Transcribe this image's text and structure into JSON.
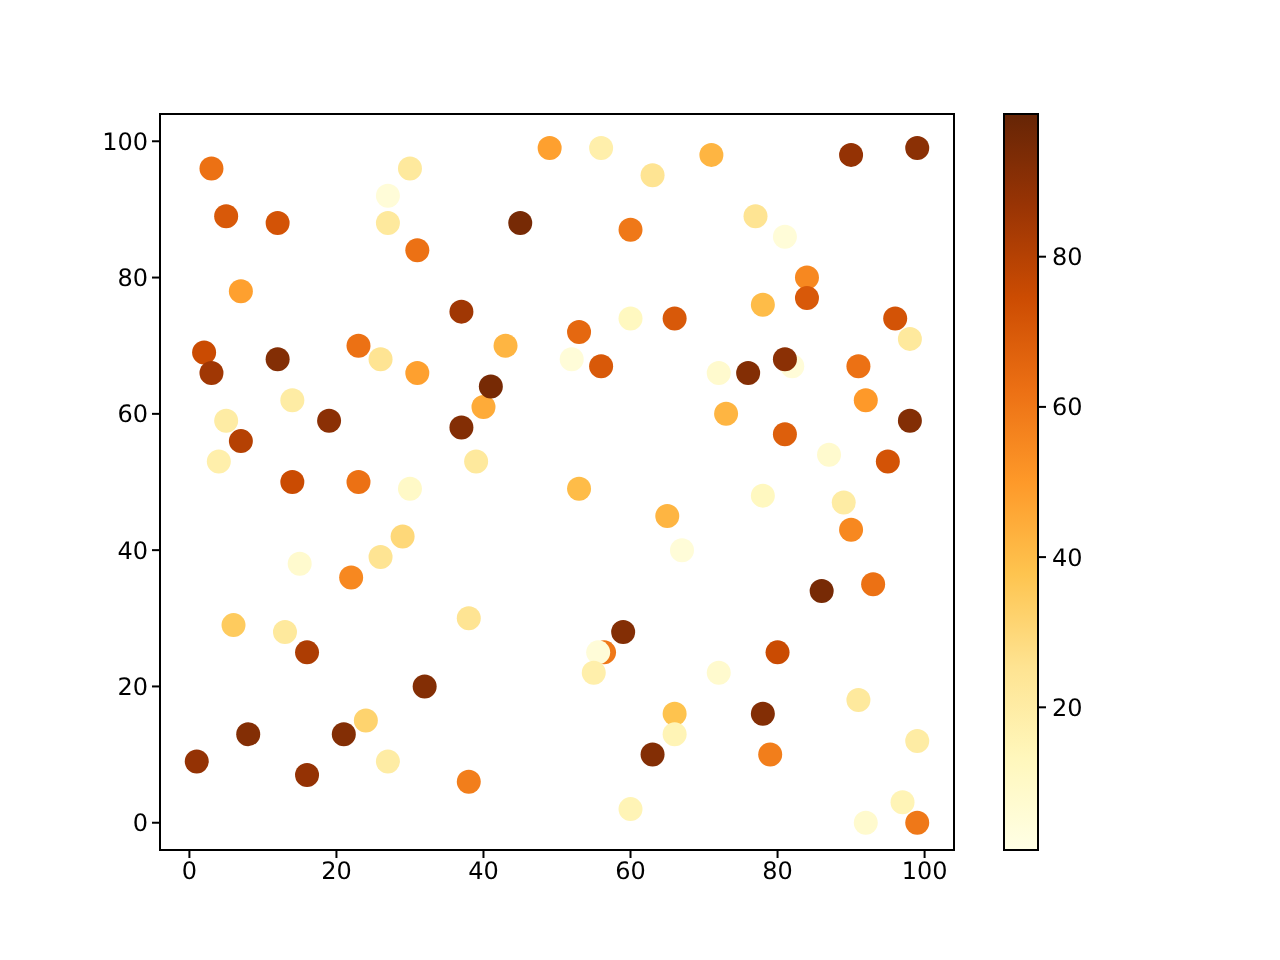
{
  "chart_data": {
    "type": "scatter",
    "marker": "circle",
    "xlim": [
      -4,
      104
    ],
    "ylim": [
      -4,
      104
    ],
    "xticks": [
      0,
      20,
      40,
      60,
      80,
      100
    ],
    "yticks": [
      0,
      20,
      40,
      60,
      80,
      100
    ],
    "clim": [
      1,
      99
    ],
    "cticks": [
      20,
      40,
      60,
      80
    ],
    "x": [
      3,
      5,
      12,
      27,
      27,
      30,
      31,
      7,
      37,
      2,
      3,
      12,
      23,
      26,
      31,
      43,
      14,
      5,
      7,
      19,
      37,
      40,
      41,
      4,
      39,
      14,
      23,
      30,
      45,
      49,
      29,
      26,
      15,
      22,
      6,
      13,
      38,
      16,
      32,
      8,
      21,
      24,
      1,
      16,
      27,
      38,
      56,
      63,
      71,
      90,
      99,
      60,
      77,
      81,
      84,
      84,
      78,
      96,
      98,
      53,
      60,
      66,
      52,
      56,
      72,
      76,
      82,
      81,
      91,
      92,
      73,
      98,
      81,
      87,
      95,
      53,
      78,
      89,
      90,
      65,
      67,
      86,
      93,
      59,
      56.4,
      55.6,
      55,
      72,
      80,
      91,
      66,
      66,
      78,
      63,
      79,
      99,
      60,
      97,
      92,
      99
    ],
    "values": [
      96,
      89,
      88,
      92,
      88,
      96,
      84,
      78,
      75,
      69,
      66,
      68,
      70,
      68,
      66,
      70,
      62,
      59,
      56,
      59,
      58,
      61,
      64,
      53,
      53,
      50,
      50,
      49,
      88,
      99,
      42,
      39,
      38,
      36,
      29,
      28,
      30,
      25,
      20,
      13,
      13,
      15,
      9,
      7,
      9,
      6,
      99,
      95,
      98,
      98,
      99,
      87,
      89,
      86,
      80,
      77,
      76,
      74,
      71,
      72,
      74,
      74,
      68,
      67,
      66,
      66,
      67,
      68,
      67,
      62,
      60,
      59,
      57,
      54,
      53,
      49,
      48,
      47,
      43,
      45,
      40,
      34,
      35,
      28,
      25,
      25,
      22,
      22,
      25,
      18,
      16,
      13,
      16,
      10,
      10,
      12,
      2,
      3,
      0,
      0
    ],
    "cvalues": [
      62,
      70,
      72,
      5,
      22,
      22,
      62,
      48,
      85,
      75,
      85,
      92,
      62,
      25,
      48,
      42,
      20,
      20,
      80,
      90,
      92,
      45,
      95,
      18,
      22,
      75,
      62,
      10,
      95,
      48,
      30,
      25,
      8,
      55,
      35,
      22,
      25,
      82,
      92,
      92,
      92,
      32,
      88,
      88,
      20,
      58,
      18,
      25,
      42,
      88,
      90,
      60,
      25,
      5,
      55,
      70,
      40,
      72,
      22,
      65,
      12,
      70,
      5,
      70,
      8,
      92,
      5,
      90,
      62,
      50,
      42,
      92,
      68,
      8,
      72,
      40,
      12,
      20,
      55,
      42,
      5,
      95,
      62,
      92,
      60,
      5,
      18,
      8,
      75,
      22,
      38,
      15,
      92,
      92,
      58,
      20,
      15,
      15,
      8,
      60
    ]
  }
}
